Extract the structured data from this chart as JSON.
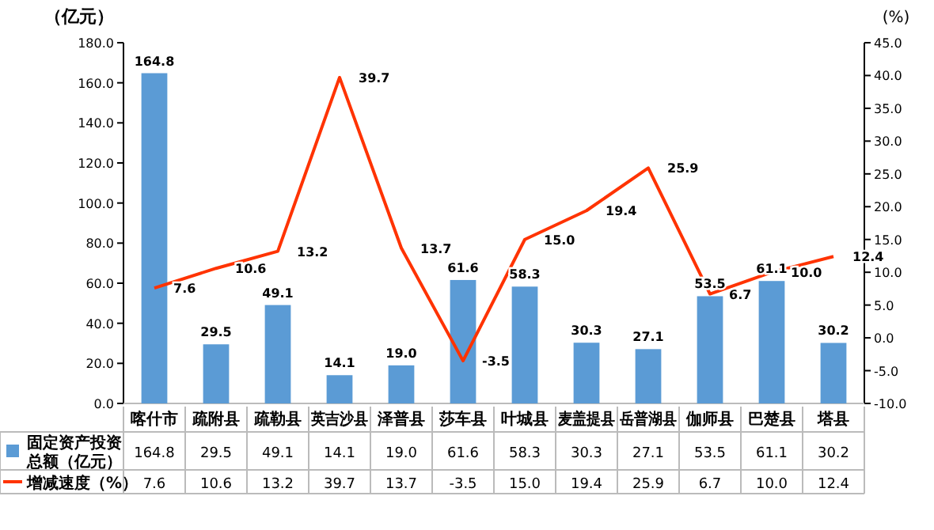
{
  "chart_data": {
    "type": "bar",
    "categories": [
      "喀什市",
      "疏附县",
      "疏勒县",
      "英吉沙县",
      "泽普县",
      "莎车县",
      "叶城县",
      "麦盖提县",
      "岳普湖县",
      "伽师县",
      "巴楚县",
      "塔县"
    ],
    "series": [
      {
        "type": "bar",
        "name": "固定资产投资总额（亿元）",
        "color": "#5b9bd5",
        "values": [
          164.8,
          29.5,
          49.1,
          14.1,
          19.0,
          61.6,
          58.3,
          30.3,
          27.1,
          53.5,
          61.1,
          30.2
        ],
        "value_labels": [
          "164.8",
          "29.5",
          "49.1",
          "14.1",
          "19.0",
          "61.6",
          "58.3",
          "30.3",
          "27.1",
          "53.5",
          "61.1",
          "30.2"
        ]
      },
      {
        "type": "line",
        "axis": "y2",
        "name": "增减速度（%）",
        "color": "#ff3300",
        "values": [
          7.6,
          10.6,
          13.2,
          39.7,
          13.7,
          -3.5,
          15.0,
          19.4,
          25.9,
          6.7,
          10.0,
          12.4
        ],
        "value_labels": [
          "7.6",
          "10.6",
          "13.2",
          "39.7",
          "13.7",
          "-3.5",
          "15.0",
          "19.4",
          "25.9",
          "6.7",
          "10.0",
          "12.4"
        ]
      }
    ],
    "ylabel": "（亿元）",
    "y2label": "(%)",
    "ylim": [
      0,
      180
    ],
    "yticks": [
      {
        "value": 0,
        "label": "0.0"
      },
      {
        "value": 20,
        "label": "20.0"
      },
      {
        "value": 40,
        "label": "40.0"
      },
      {
        "value": 60,
        "label": "60.0"
      },
      {
        "value": 80,
        "label": "80.0"
      },
      {
        "value": 100,
        "label": "100.0"
      },
      {
        "value": 120,
        "label": "120.0"
      },
      {
        "value": 140,
        "label": "140.0"
      },
      {
        "value": 160,
        "label": "160.0"
      },
      {
        "value": 180,
        "label": "180.0"
      }
    ],
    "y2lim": [
      -10,
      45
    ],
    "y2ticks": [
      {
        "value": -10,
        "label": "-10.0"
      },
      {
        "value": -5,
        "label": "-5.0"
      },
      {
        "value": 0,
        "label": "0.0"
      },
      {
        "value": 5,
        "label": "5.0"
      },
      {
        "value": 10,
        "label": "10.0"
      },
      {
        "value": 15,
        "label": "15.0"
      },
      {
        "value": 20,
        "label": "20.0"
      },
      {
        "value": 25,
        "label": "25.0"
      },
      {
        "value": 30,
        "label": "30.0"
      },
      {
        "value": 35,
        "label": "35.0"
      },
      {
        "value": 40,
        "label": "40.0"
      },
      {
        "value": 45,
        "label": "45.0"
      }
    ],
    "legend": "bottom left",
    "data_labels": true,
    "marker": "none",
    "line_style": "solid"
  }
}
